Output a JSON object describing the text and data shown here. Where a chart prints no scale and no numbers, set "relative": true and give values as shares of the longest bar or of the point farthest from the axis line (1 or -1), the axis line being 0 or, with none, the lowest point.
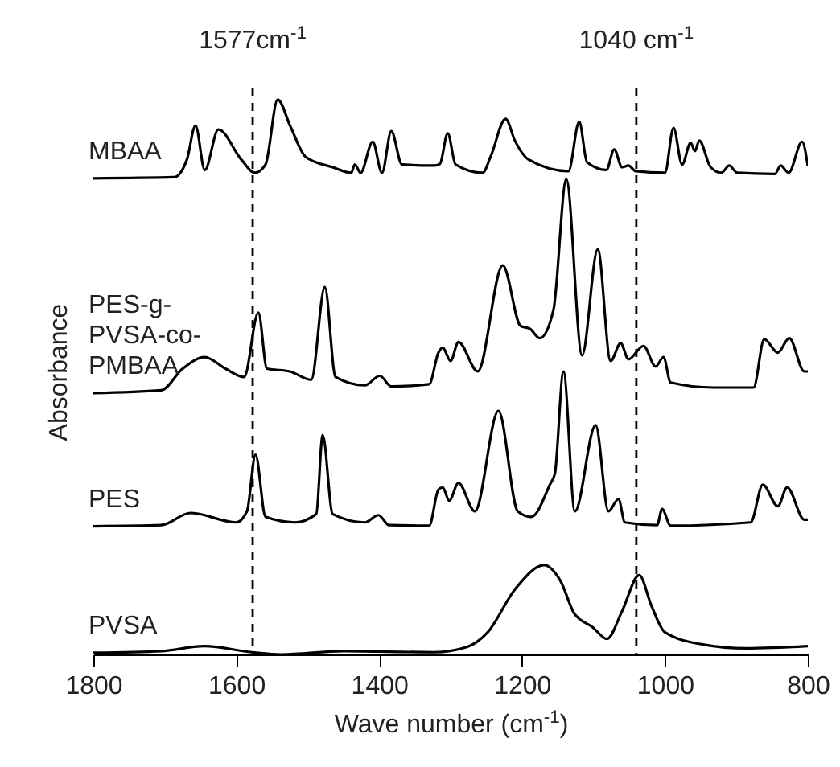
{
  "chart_data": {
    "type": "line",
    "relative": true,
    "xlabel": "Wave number (cm$^{-1}$)",
    "ylabel": "Absorbance",
    "xlim": [
      1800,
      800
    ],
    "xticks": [
      1800,
      1600,
      1400,
      1200,
      1000,
      800
    ],
    "tick_labels": "x",
    "ref_lines": [
      {
        "axis": "x",
        "value": 1577,
        "label": "1577cm$^{-1}$",
        "color": "#000000",
        "line_style": "dashed"
      },
      {
        "axis": "x",
        "value": 1040,
        "label": "1040 cm$^{-1}$",
        "color": "#000000",
        "line_style": "dashed"
      }
    ],
    "series": [
      {
        "name": "MBAA",
        "color": "#000000",
        "x": [
          1800,
          1687,
          1669,
          1657,
          1644,
          1625,
          1593,
          1574,
          1559,
          1542,
          1524,
          1503,
          1465,
          1439,
          1434,
          1426,
          1409,
          1396,
          1383,
          1368,
          1323,
          1315,
          1304,
          1293,
          1255,
          1244,
          1223,
          1210,
          1191,
          1135,
          1120,
          1109,
          1082,
          1071,
          1060,
          1051,
          1041,
          1000,
          988,
          976,
          964,
          958,
          952,
          936,
          921,
          910,
          899,
          846,
          838,
          827,
          808,
          800
        ],
        "values": [
          0.858,
          0.86,
          0.892,
          0.953,
          0.873,
          0.946,
          0.892,
          0.868,
          0.883,
          1.0,
          0.951,
          0.897,
          0.878,
          0.868,
          0.883,
          0.868,
          0.924,
          0.868,
          0.943,
          0.883,
          0.881,
          0.884,
          0.939,
          0.883,
          0.868,
          0.897,
          0.965,
          0.926,
          0.892,
          0.871,
          0.96,
          0.887,
          0.873,
          0.91,
          0.878,
          0.881,
          0.871,
          0.868,
          0.949,
          0.883,
          0.922,
          0.907,
          0.926,
          0.878,
          0.868,
          0.881,
          0.868,
          0.866,
          0.881,
          0.868,
          0.924,
          0.88
        ]
      },
      {
        "name": "PES-g-PVSA-co-PMBAA",
        "color": "#000000",
        "x": [
          1800,
          1705,
          1675,
          1644,
          1615,
          1589,
          1569,
          1557,
          1525,
          1495,
          1476,
          1461,
          1420,
          1399,
          1383,
          1330,
          1317,
          1311,
          1300,
          1289,
          1262,
          1227,
          1202,
          1189,
          1175,
          1156,
          1138,
          1116,
          1094,
          1076,
          1062,
          1051,
          1030,
          1013,
          1002,
          992,
          932,
          876,
          861,
          842,
          826,
          805,
          800
        ],
        "values": [
          0.471,
          0.476,
          0.515,
          0.536,
          0.515,
          0.5,
          0.616,
          0.515,
          0.51,
          0.495,
          0.662,
          0.5,
          0.485,
          0.502,
          0.483,
          0.487,
          0.544,
          0.553,
          0.529,
          0.563,
          0.51,
          0.701,
          0.592,
          0.587,
          0.57,
          0.621,
          0.856,
          0.539,
          0.73,
          0.529,
          0.561,
          0.532,
          0.556,
          0.519,
          0.536,
          0.49,
          0.481,
          0.481,
          0.568,
          0.544,
          0.57,
          0.51,
          0.51
        ]
      },
      {
        "name": "PES",
        "color": "#000000",
        "x": [
          1800,
          1705,
          1664,
          1600,
          1585,
          1573,
          1559,
          1518,
          1488,
          1479,
          1465,
          1420,
          1401,
          1386,
          1330,
          1317,
          1311,
          1302,
          1289,
          1266,
          1233,
          1206,
          1187,
          1161,
          1154,
          1142,
          1126,
          1097,
          1079,
          1065,
          1056,
          1011,
          1004,
          992,
          880,
          863,
          842,
          829,
          805,
          800
        ],
        "values": [
          0.231,
          0.233,
          0.255,
          0.238,
          0.258,
          0.36,
          0.248,
          0.238,
          0.253,
          0.395,
          0.253,
          0.238,
          0.251,
          0.233,
          0.232,
          0.297,
          0.301,
          0.277,
          0.309,
          0.258,
          0.439,
          0.258,
          0.248,
          0.306,
          0.326,
          0.51,
          0.258,
          0.413,
          0.258,
          0.28,
          0.238,
          0.233,
          0.262,
          0.232,
          0.238,
          0.306,
          0.267,
          0.301,
          0.243,
          0.243
        ]
      },
      {
        "name": "PVSA",
        "color": "#000000",
        "x": [
          1800,
          1705,
          1645,
          1578,
          1537,
          1450,
          1323,
          1278,
          1248,
          1210,
          1169,
          1146,
          1127,
          1101,
          1081,
          1060,
          1036,
          1019,
          1000,
          947,
          887,
          800
        ],
        "values": [
          0.003,
          0.006,
          0.015,
          0.004,
          0.0,
          0.006,
          0.004,
          0.013,
          0.04,
          0.117,
          0.161,
          0.132,
          0.074,
          0.049,
          0.028,
          0.078,
          0.143,
          0.088,
          0.04,
          0.018,
          0.011,
          0.015
        ]
      }
    ]
  }
}
